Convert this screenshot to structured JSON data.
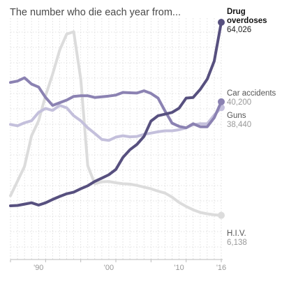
{
  "chart_data": {
    "type": "line",
    "title": "The number who die each year from...",
    "xlim": [
      1986,
      2016
    ],
    "ylim": [
      0,
      64026
    ],
    "x_tick_labels": [
      {
        "year": 1990,
        "label": "'90"
      },
      {
        "year": 2000,
        "label": "'00"
      },
      {
        "year": 2010,
        "label": "'10"
      },
      {
        "year": 2016,
        "label": "'16"
      }
    ],
    "grid": true,
    "series": [
      {
        "name": "H.I.V.",
        "label_lines": [
          "H.I.V."
        ],
        "value_label": "6,138",
        "color": "#dcdcdc",
        "x": [
          1986,
          1987,
          1988,
          1989,
          1990,
          1991,
          1992,
          1993,
          1994,
          1995,
          1996,
          1997,
          1998,
          1999,
          2000,
          2001,
          2002,
          2003,
          2004,
          2005,
          2006,
          2007,
          2008,
          2009,
          2010,
          2011,
          2012,
          2013,
          2014,
          2015,
          2016
        ],
        "y": [
          12000,
          16400,
          20800,
          30000,
          34500,
          42000,
          48500,
          55700,
          60500,
          61200,
          47000,
          21000,
          15600,
          16200,
          16300,
          15900,
          15600,
          15500,
          15100,
          14600,
          14100,
          13400,
          12800,
          11600,
          10000,
          8800,
          7800,
          7000,
          6600,
          6300,
          6138
        ]
      },
      {
        "name": "Guns",
        "label_lines": [
          "Guns"
        ],
        "value_label": "38,440",
        "color": "#c4c0dc",
        "x": [
          1986,
          1987,
          1988,
          1989,
          1990,
          1991,
          1992,
          1993,
          1994,
          1995,
          1996,
          1997,
          1998,
          1999,
          2000,
          2001,
          2002,
          2003,
          2004,
          2005,
          2006,
          2007,
          2008,
          2009,
          2010,
          2011,
          2012,
          2013,
          2014,
          2015,
          2016
        ],
        "y": [
          33400,
          33000,
          33900,
          34500,
          37000,
          38200,
          37600,
          39100,
          38400,
          36000,
          34500,
          32400,
          30700,
          28900,
          28600,
          29600,
          30000,
          29700,
          29800,
          30400,
          30800,
          31200,
          31500,
          31500,
          31800,
          32400,
          33300,
          33600,
          33600,
          36200,
          38440
        ]
      },
      {
        "name": "Car accidents",
        "label_lines": [
          "Car accidents"
        ],
        "value_label": "40,200",
        "color": "#8b82b2",
        "x": [
          1986,
          1987,
          1988,
          1989,
          1990,
          1991,
          1992,
          1993,
          1994,
          1995,
          1996,
          1997,
          1998,
          1999,
          2000,
          2001,
          2002,
          2003,
          2004,
          2005,
          2006,
          2007,
          2008,
          2009,
          2010,
          2011,
          2012,
          2013,
          2014,
          2015,
          2016
        ],
        "y": [
          46000,
          46400,
          47400,
          45500,
          44600,
          41500,
          39100,
          39900,
          40700,
          41800,
          42000,
          42000,
          41500,
          41700,
          41900,
          42200,
          43000,
          42900,
          42800,
          43500,
          42700,
          41300,
          37400,
          33800,
          32800,
          32400,
          33600,
          32700,
          32700,
          35400,
          40200
        ]
      },
      {
        "name": "Drug overdoses",
        "label_lines": [
          "Drug",
          "overdoses"
        ],
        "value_label": "64,026",
        "color": "#57507f",
        "x": [
          1986,
          1987,
          1988,
          1989,
          1990,
          1991,
          1992,
          1993,
          1994,
          1995,
          1996,
          1997,
          1998,
          1999,
          2000,
          2001,
          2002,
          2003,
          2004,
          2005,
          2006,
          2007,
          2008,
          2009,
          2010,
          2011,
          2012,
          2013,
          2014,
          2015,
          2016
        ],
        "y": [
          9000,
          9100,
          9500,
          9900,
          9200,
          9900,
          10900,
          11800,
          12600,
          13100,
          14100,
          15000,
          16300,
          17300,
          18300,
          19900,
          23500,
          25800,
          27400,
          29800,
          34400,
          36000,
          36500,
          37000,
          38300,
          41300,
          41500,
          43900,
          47000,
          52400,
          64026
        ]
      }
    ]
  }
}
